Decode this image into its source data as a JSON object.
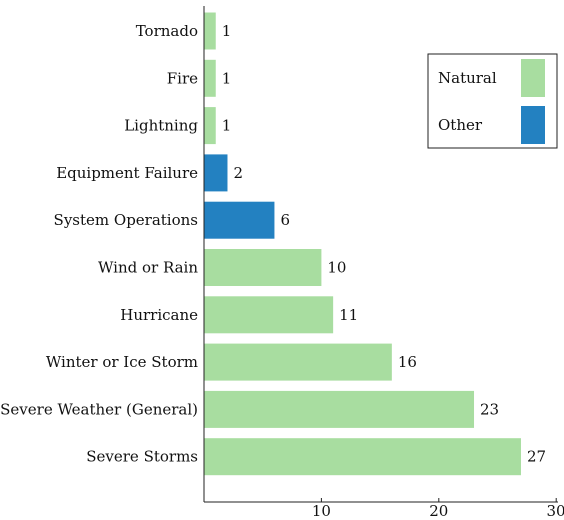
{
  "chart_data": {
    "type": "bar",
    "orientation": "horizontal",
    "title": "",
    "xlabel": "",
    "ylabel": "",
    "xlim": [
      0,
      30
    ],
    "xticks": [
      10,
      20,
      30
    ],
    "grid": false,
    "legend_position": "top-right",
    "categories": [
      "Tornado",
      "Fire",
      "Lightning",
      "Equipment Failure",
      "System Operations",
      "Wind or Rain",
      "Hurricane",
      "Winter or Ice Storm",
      "Severe Weather (General)",
      "Severe Storms"
    ],
    "values": [
      1,
      1,
      1,
      2,
      6,
      10,
      11,
      16,
      23,
      27
    ],
    "groups": [
      "Natural",
      "Natural",
      "Natural",
      "Other",
      "Other",
      "Natural",
      "Natural",
      "Natural",
      "Natural",
      "Natural"
    ],
    "legend": [
      {
        "label": "Natural",
        "color": "#a8dda0"
      },
      {
        "label": "Other",
        "color": "#2381c1"
      }
    ]
  }
}
